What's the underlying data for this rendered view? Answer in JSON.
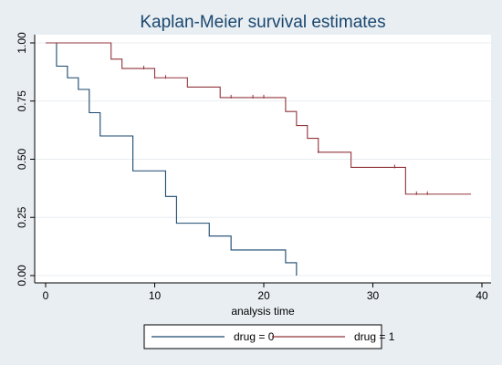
{
  "chart_data": {
    "type": "line",
    "step": true,
    "title": "Kaplan-Meier survival estimates",
    "xlabel": "analysis time",
    "ylabel": "",
    "xlim": [
      0,
      40
    ],
    "ylim": [
      0,
      1
    ],
    "xticks": [
      "0",
      "10",
      "20",
      "30",
      "40"
    ],
    "yticks": [
      "0.00",
      "0.25",
      "0.50",
      "0.75",
      "1.00"
    ],
    "grid": true,
    "legend_position": "bottom",
    "series": [
      {
        "name": "drug = 0",
        "color": "#1a476f",
        "x": [
          0,
          1,
          2,
          3,
          4,
          5,
          8,
          11,
          12,
          15,
          17,
          22,
          23
        ],
        "y": [
          1.0,
          0.9,
          0.85,
          0.8,
          0.7,
          0.6,
          0.45,
          0.34,
          0.225,
          0.17,
          0.11,
          0.055,
          0.0
        ],
        "censored_x": [],
        "end_x": 23
      },
      {
        "name": "drug = 1",
        "color": "#90353b",
        "x": [
          0,
          6,
          7,
          10,
          13,
          16,
          22,
          23,
          24,
          25,
          28,
          33
        ],
        "y": [
          1.0,
          0.93,
          0.89,
          0.85,
          0.81,
          0.765,
          0.705,
          0.645,
          0.59,
          0.53,
          0.465,
          0.35
        ],
        "censored_x": [
          9,
          10,
          11,
          17,
          19,
          20,
          25,
          32,
          34,
          35
        ],
        "end_x": 39
      }
    ]
  }
}
